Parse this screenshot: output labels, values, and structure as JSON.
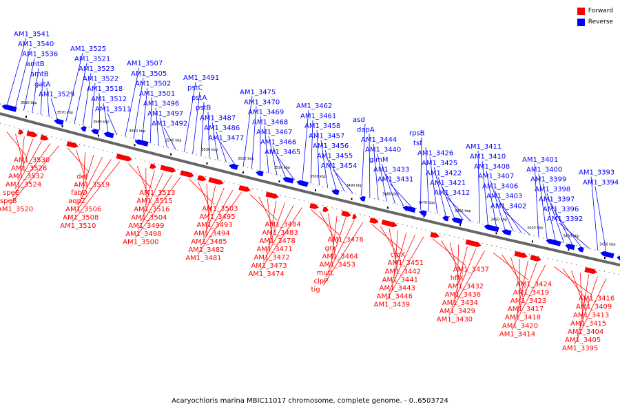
{
  "caption": "Acaryochloris marina MBIC11017 chromosome, complete genome. - 0..6503724",
  "legend": [
    {
      "label": "Forward",
      "color": "#ff0000"
    },
    {
      "label": "Reverse",
      "color": "#0000ff"
    }
  ],
  "colors": {
    "forward": "#ff0000",
    "reverse": "#0000ff",
    "backbone": "#666666"
  },
  "scale": {
    "tick_labels": [
      "3580 kbp",
      "3570 kbp",
      "3560 kbp",
      "3550 kbp",
      "3540 kbp",
      "3530 kbp",
      "3520 kbp",
      "3510 kbp",
      "3500 kbp",
      "3490 kbp",
      "3480 kbp",
      "3470 kbp",
      "3460 kbp",
      "3450 kbp",
      "3440 kbp",
      "3430 kbp",
      "3420 kbp"
    ]
  },
  "reverse_labels": [
    "AM1_3541",
    "AM1_3540",
    "AM1_3536",
    "amtB",
    "amtB",
    "gatA",
    "AM1_3529",
    "AM1_3525",
    "AM1_3521",
    "AM1_3523",
    "AM1_3522",
    "AM1_3518",
    "AM1_3512",
    "AM1_3511",
    "AM1_3507",
    "AM1_3505",
    "AM1_3502",
    "AM1_3501",
    "AM1_3496",
    "AM1_3497",
    "AM1_3492",
    "AM1_3491",
    "pstC",
    "pstA",
    "pstB",
    "AM1_3487",
    "AM1_3486",
    "AM1_3477",
    "AM1_3475",
    "AM1_3470",
    "AM1_3469",
    "AM1_3468",
    "AM1_3467",
    "AM1_3466",
    "AM1_3465",
    "AM1_3462",
    "AM1_3461",
    "AM1_3458",
    "AM1_3457",
    "AM1_3456",
    "AM1_3455",
    "AM1_3454",
    "asd",
    "dapA",
    "AM1_3444",
    "AM1_3440",
    "glmM",
    "AM1_3433",
    "AM1_3431",
    "rpsB",
    "tsf",
    "AM1_3426",
    "AM1_3425",
    "AM1_3422",
    "AM1_3421",
    "AM1_3412",
    "AM1_3411",
    "AM1_3410",
    "AM1_3408",
    "AM1_3407",
    "AM1_3406",
    "AM1_3403",
    "AM1_3402",
    "AM1_3401",
    "AM1_3400",
    "AM1_3399",
    "AM1_3398",
    "AM1_3397",
    "AM1_3396",
    "AM1_3392",
    "AM1_3393",
    "AM1_3394"
  ],
  "forward_labels": [
    "AM1_3530",
    "AM1_3526",
    "AM1_3532",
    "AM1_3524",
    "speE",
    "speB",
    "AM1_3520",
    "def",
    "AM1_3519",
    "fabD",
    "aqpZ",
    "AM1_3506",
    "AM1_3508",
    "AM1_3510",
    "AM1_3513",
    "AM1_3515",
    "AM1_3516",
    "AM1_3504",
    "AM1_3499",
    "AM1_3498",
    "AM1_3500",
    "AM1_3503",
    "AM1_3495",
    "AM1_3493",
    "AM1_3494",
    "AM1_3485",
    "AM1_3482",
    "AM1_3481",
    "AM1_3484",
    "AM1_3483",
    "AM1_3478",
    "AM1_3471",
    "AM1_3472",
    "AM1_3473",
    "AM1_3474",
    "AM1_3476",
    "grx",
    "AM1_3464",
    "AM1_3453",
    "mutL",
    "clpP",
    "tig",
    "clpX",
    "AM1_3451",
    "AM1_3442",
    "AM1_3441",
    "AM1_3443",
    "AM1_3446",
    "AM1_3439",
    "AM1_3437",
    "hflX",
    "AM1_3432",
    "AM1_3436",
    "AM1_3434",
    "AM1_3429",
    "AM1_3430",
    "AM1_3424",
    "AM1_3419",
    "AM1_3423",
    "AM1_3417",
    "AM1_3418",
    "AM1_3420",
    "AM1_3414",
    "AM1_3416",
    "AM1_3409",
    "AM1_3413",
    "AM1_3415",
    "AM1_3404",
    "AM1_3405",
    "AM1_3395"
  ]
}
